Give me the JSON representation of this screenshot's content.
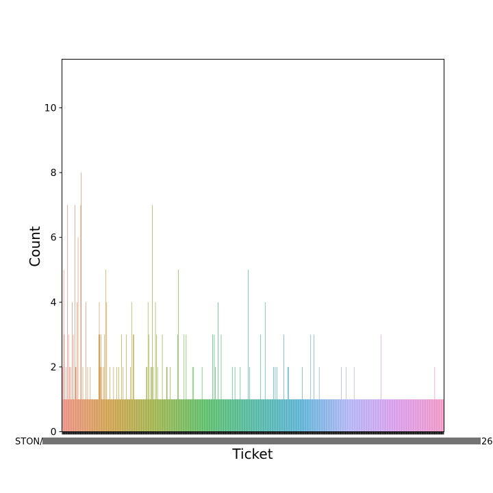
{
  "chart_data": {
    "type": "bar",
    "xlabel": "Ticket",
    "ylabel": "Count",
    "ylim": [
      0,
      11.5
    ],
    "yticks": [
      0,
      2,
      4,
      6,
      8,
      10
    ],
    "grid": false,
    "legend": "none",
    "category_count": 681,
    "visible_xtick_fragments": [
      "STON/",
      "26"
    ],
    "palette_stops": [
      "#e8796d",
      "#c5902c",
      "#8aa62c",
      "#3cb04c",
      "#33aa90",
      "#3ba3cb",
      "#a3a6f4",
      "#d18ae6",
      "#ec82ba"
    ],
    "values": [
      1,
      2,
      1,
      5,
      3,
      1,
      1,
      2,
      1,
      1,
      7,
      1,
      3,
      1,
      2,
      1,
      2,
      1,
      1,
      4,
      1,
      3,
      1,
      1,
      7,
      2,
      2,
      1,
      4,
      1,
      6,
      1,
      1,
      1,
      1,
      7,
      8,
      1,
      1,
      2,
      1,
      1,
      1,
      1,
      1,
      4,
      1,
      1,
      2,
      1,
      1,
      1,
      1,
      2,
      1,
      1,
      1,
      1,
      1,
      1,
      1,
      1,
      1,
      1,
      1,
      1,
      1,
      1,
      1,
      3,
      4,
      3,
      2,
      3,
      1,
      2,
      1,
      1,
      2,
      1,
      3,
      1,
      5,
      1,
      4,
      1,
      1,
      1,
      1,
      1,
      2,
      1,
      1,
      1,
      1,
      1,
      1,
      2,
      1,
      1,
      1,
      1,
      1,
      2,
      1,
      1,
      1,
      2,
      1,
      1,
      1,
      1,
      3,
      1,
      1,
      2,
      1,
      1,
      1,
      1,
      1,
      3,
      1,
      1,
      1,
      1,
      1,
      1,
      1,
      2,
      1,
      4,
      1,
      1,
      3,
      3,
      1,
      1,
      1,
      1,
      1,
      1,
      1,
      1,
      1,
      1,
      1,
      1,
      1,
      1,
      1,
      1,
      1,
      1,
      1,
      1,
      1,
      1,
      1,
      2,
      2,
      1,
      4,
      1,
      3,
      1,
      1,
      2,
      1,
      2,
      7,
      1,
      2,
      1,
      1,
      1,
      4,
      1,
      3,
      1,
      2,
      1,
      1,
      1,
      1,
      1,
      1,
      1,
      1,
      3,
      1,
      1,
      1,
      1,
      1,
      1,
      1,
      2,
      2,
      1,
      1,
      1,
      1,
      1,
      2,
      1,
      1,
      1,
      1,
      1,
      1,
      1,
      1,
      1,
      1,
      1,
      1,
      1,
      3,
      5,
      1,
      1,
      1,
      1,
      1,
      1,
      1,
      1,
      1,
      1,
      3,
      1,
      1,
      1,
      3,
      1,
      1,
      1,
      1,
      1,
      1,
      1,
      1,
      1,
      1,
      1,
      2,
      1,
      2,
      1,
      1,
      1,
      1,
      1,
      1,
      1,
      1,
      1,
      1,
      1,
      1,
      1,
      1,
      1,
      2,
      1,
      1,
      1,
      1,
      1,
      1,
      1,
      1,
      1,
      1,
      1,
      1,
      1,
      1,
      1,
      1,
      1,
      1,
      1,
      3,
      1,
      1,
      3,
      1,
      2,
      1,
      1,
      1,
      1,
      4,
      1,
      1,
      1,
      1,
      1,
      3,
      1,
      1,
      1,
      1,
      1,
      1,
      1,
      1,
      1,
      1,
      1,
      1,
      1,
      1,
      1,
      1,
      1,
      1,
      1,
      1,
      2,
      1,
      1,
      1,
      1,
      2,
      1,
      1,
      1,
      1,
      1,
      1,
      1,
      1,
      1,
      2,
      1,
      1,
      1,
      1,
      1,
      1,
      1,
      1,
      1,
      1,
      1,
      1,
      1,
      1,
      5,
      1,
      1,
      2,
      1,
      1,
      1,
      1,
      1,
      1,
      1,
      1,
      1,
      1,
      1,
      1,
      1,
      1,
      1,
      1,
      1,
      1,
      1,
      3,
      1,
      1,
      1,
      1,
      1,
      1,
      1,
      1,
      4,
      1,
      1,
      1,
      1,
      1,
      1,
      1,
      1,
      1,
      1,
      1,
      1,
      1,
      1,
      1,
      2,
      1,
      1,
      2,
      1,
      1,
      2,
      1,
      1,
      1,
      1,
      1,
      1,
      1,
      1,
      1,
      1,
      1,
      1,
      3,
      1,
      1,
      1,
      1,
      1,
      1,
      1,
      2,
      2,
      1,
      1,
      1,
      1,
      1,
      1,
      1,
      1,
      1,
      1,
      1,
      1,
      1,
      1,
      1,
      1,
      1,
      1,
      1,
      1,
      1,
      1,
      1,
      1,
      1,
      2,
      1,
      1,
      1,
      1,
      1,
      1,
      1,
      1,
      1,
      1,
      1,
      1,
      1,
      1,
      1,
      3,
      1,
      1,
      1,
      1,
      1,
      3,
      1,
      1,
      1,
      1,
      1,
      1,
      1,
      1,
      1,
      2,
      1,
      1,
      1,
      1,
      1,
      1,
      1,
      1,
      1,
      1,
      1,
      1,
      1,
      1,
      1,
      1,
      1,
      1,
      1,
      1,
      1,
      1,
      1,
      1,
      1,
      1,
      1,
      1,
      1,
      1,
      1,
      1,
      1,
      1,
      1,
      1,
      1,
      1,
      1,
      1,
      1,
      2,
      1,
      1,
      1,
      1,
      1,
      1,
      1,
      1,
      2,
      1,
      1,
      1,
      1,
      1,
      1,
      1,
      1,
      1,
      1,
      1,
      1,
      1,
      1,
      2,
      1,
      1,
      1,
      1,
      1,
      1,
      1,
      1,
      1,
      1,
      1,
      1,
      1,
      1,
      1,
      1,
      1,
      1,
      1,
      1,
      1,
      1,
      1,
      1,
      1,
      1,
      1,
      1,
      1,
      1,
      1,
      1,
      1,
      1,
      1,
      1,
      1,
      1,
      1,
      1,
      1,
      1,
      1,
      1,
      1,
      1,
      1,
      1,
      1,
      1,
      3,
      1,
      1,
      1,
      1,
      1,
      1,
      1,
      1,
      1,
      1,
      1,
      1,
      1,
      1,
      1,
      1,
      1,
      1,
      1,
      1,
      1,
      1,
      1,
      1,
      1,
      1,
      1,
      1,
      1,
      1,
      1,
      1,
      1,
      1,
      1,
      1,
      1,
      1,
      1,
      1,
      1,
      1,
      1,
      1,
      1,
      1,
      1,
      1,
      1,
      1,
      1,
      1,
      1,
      1,
      1,
      1,
      1,
      1,
      1,
      1,
      1,
      1,
      1,
      1,
      1,
      1,
      1,
      1,
      1,
      1,
      1,
      1,
      1,
      1,
      1,
      1,
      1,
      1,
      1,
      1,
      1,
      1,
      1,
      1,
      1,
      1,
      1,
      1,
      1,
      1,
      1,
      1,
      1,
      1,
      1,
      1,
      1,
      1,
      1,
      1,
      2,
      1,
      1,
      1,
      1,
      1,
      1,
      1,
      1,
      1,
      1,
      1,
      1,
      1,
      1,
      1,
      1,
      1
    ]
  }
}
